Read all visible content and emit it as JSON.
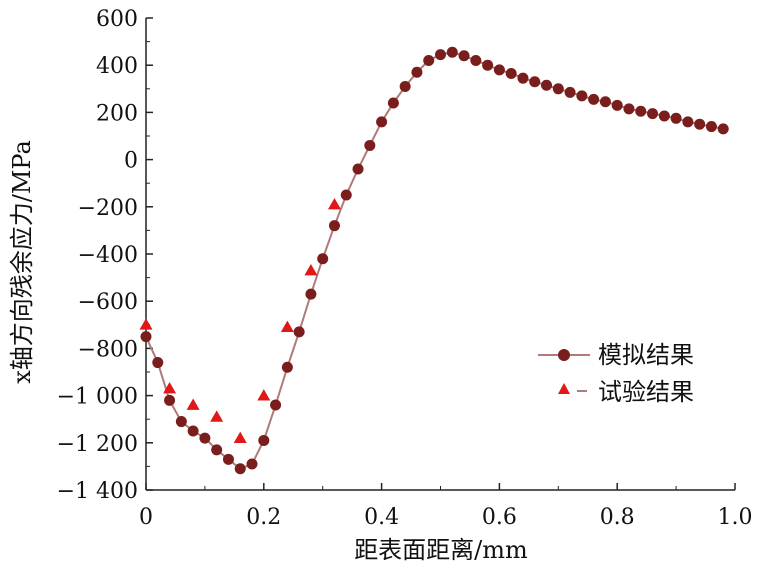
{
  "chart_data": {
    "type": "line",
    "xlabel": "距表面距离/mm",
    "ylabel": "x轴方向残余应力/MPa",
    "xlim": [
      0,
      1.0
    ],
    "ylim": [
      -1400,
      600
    ],
    "x_ticks": [
      "0",
      "0.2",
      "0.4",
      "0.6",
      "0.8",
      "1.0"
    ],
    "x_tick_values": [
      0,
      0.2,
      0.4,
      0.6,
      0.8,
      1.0
    ],
    "y_ticks": [
      "600",
      "400",
      "200",
      "0",
      "−200",
      "−400",
      "−600",
      "−800",
      "−1 000",
      "−1 200",
      "−1 400"
    ],
    "y_tick_values": [
      600,
      400,
      200,
      0,
      -200,
      -400,
      -600,
      -800,
      -1000,
      -1200,
      -1400
    ],
    "legend_position": "right",
    "series": [
      {
        "name": "模拟结果",
        "marker": "circle",
        "line": true,
        "color": "#7a1d1d",
        "line_color": "#b07a7a",
        "x": [
          0,
          0.02,
          0.04,
          0.06,
          0.08,
          0.1,
          0.12,
          0.14,
          0.16,
          0.18,
          0.2,
          0.22,
          0.24,
          0.26,
          0.28,
          0.3,
          0.32,
          0.34,
          0.36,
          0.38,
          0.4,
          0.42,
          0.44,
          0.46,
          0.48,
          0.5,
          0.52,
          0.54,
          0.56,
          0.58,
          0.6,
          0.62,
          0.64,
          0.66,
          0.68,
          0.7,
          0.72,
          0.74,
          0.76,
          0.78,
          0.8,
          0.82,
          0.84,
          0.86,
          0.88,
          0.9,
          0.92,
          0.94,
          0.96,
          0.98
        ],
        "y": [
          -750,
          -860,
          -1020,
          -1110,
          -1150,
          -1180,
          -1230,
          -1270,
          -1310,
          -1290,
          -1190,
          -1040,
          -880,
          -730,
          -570,
          -420,
          -280,
          -150,
          -40,
          60,
          160,
          240,
          310,
          370,
          420,
          445,
          455,
          440,
          420,
          400,
          380,
          365,
          345,
          330,
          315,
          300,
          285,
          270,
          255,
          245,
          230,
          215,
          205,
          195,
          185,
          175,
          160,
          150,
          140,
          130
        ]
      },
      {
        "name": "试验结果",
        "marker": "triangle",
        "line": false,
        "color": "#e01818",
        "x": [
          0,
          0.04,
          0.08,
          0.12,
          0.16,
          0.2,
          0.24,
          0.28,
          0.32
        ],
        "y": [
          -700,
          -970,
          -1040,
          -1090,
          -1180,
          -1000,
          -710,
          -470,
          -190
        ]
      }
    ]
  }
}
